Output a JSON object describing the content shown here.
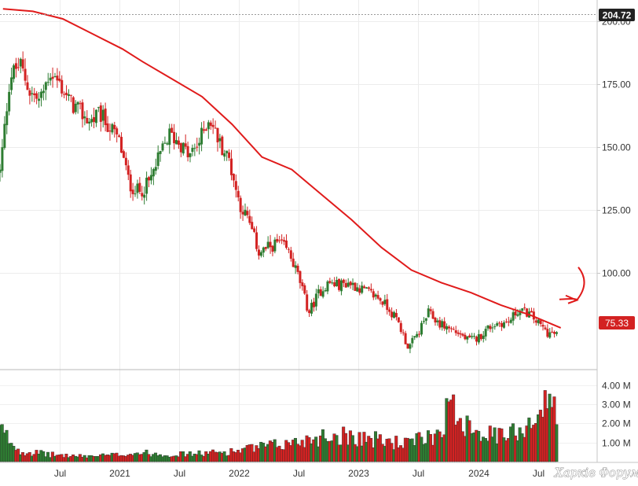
{
  "chart_data": [
    {
      "type": "candlestick",
      "title": "",
      "ylim": [
        62,
        206
      ],
      "yticks": [
        100,
        125,
        150,
        175,
        200
      ],
      "ytick_labels": [
        "100.00",
        "125.00",
        "150.00",
        "175.00",
        "200.00"
      ],
      "x_tick_labels": [
        "Jul",
        "2021",
        "Jul",
        "2022",
        "Jul",
        "2023",
        "Jul",
        "2024",
        "Jul"
      ],
      "x_range": [
        "2020-01",
        "2024-12"
      ],
      "grid": true,
      "markers": {
        "high": {
          "label": "204.72",
          "value": 204.72,
          "color": "#222222"
        },
        "last": {
          "label": "75.33",
          "value": 75.33,
          "color": "#d32222"
        }
      },
      "colors": {
        "up": "#2e7d32",
        "down": "#d32222"
      },
      "price_path": [
        {
          "x": "2020-01",
          "y": 140
        },
        {
          "x": "2020-02",
          "y": 178
        },
        {
          "x": "2020-03",
          "y": 183
        },
        {
          "x": "2020-04",
          "y": 172
        },
        {
          "x": "2020-05",
          "y": 168
        },
        {
          "x": "2020-06",
          "y": 180
        },
        {
          "x": "2020-07",
          "y": 175
        },
        {
          "x": "2020-08",
          "y": 168
        },
        {
          "x": "2020-09",
          "y": 164
        },
        {
          "x": "2020-10",
          "y": 160
        },
        {
          "x": "2020-11",
          "y": 163
        },
        {
          "x": "2020-12",
          "y": 158
        },
        {
          "x": "2021-01",
          "y": 152
        },
        {
          "x": "2021-02",
          "y": 135
        },
        {
          "x": "2021-03",
          "y": 132
        },
        {
          "x": "2021-04",
          "y": 136
        },
        {
          "x": "2021-05",
          "y": 146
        },
        {
          "x": "2021-06",
          "y": 155
        },
        {
          "x": "2021-07",
          "y": 152
        },
        {
          "x": "2021-08",
          "y": 146
        },
        {
          "x": "2021-09",
          "y": 152
        },
        {
          "x": "2021-10",
          "y": 162
        },
        {
          "x": "2021-11",
          "y": 152
        },
        {
          "x": "2021-12",
          "y": 145
        },
        {
          "x": "2022-01",
          "y": 128
        },
        {
          "x": "2022-02",
          "y": 120
        },
        {
          "x": "2022-03",
          "y": 108
        },
        {
          "x": "2022-04",
          "y": 110
        },
        {
          "x": "2022-05",
          "y": 112
        },
        {
          "x": "2022-06",
          "y": 108
        },
        {
          "x": "2022-07",
          "y": 98
        },
        {
          "x": "2022-08",
          "y": 84
        },
        {
          "x": "2022-09",
          "y": 92
        },
        {
          "x": "2022-10",
          "y": 96
        },
        {
          "x": "2022-11",
          "y": 95
        },
        {
          "x": "2022-12",
          "y": 96
        },
        {
          "x": "2023-01",
          "y": 94
        },
        {
          "x": "2023-02",
          "y": 92
        },
        {
          "x": "2023-03",
          "y": 90
        },
        {
          "x": "2023-04",
          "y": 86
        },
        {
          "x": "2023-05",
          "y": 80
        },
        {
          "x": "2023-06",
          "y": 70
        },
        {
          "x": "2023-07",
          "y": 76
        },
        {
          "x": "2023-08",
          "y": 84
        },
        {
          "x": "2023-09",
          "y": 80
        },
        {
          "x": "2023-10",
          "y": 78
        },
        {
          "x": "2023-11",
          "y": 76
        },
        {
          "x": "2023-12",
          "y": 73
        },
        {
          "x": "2024-01",
          "y": 74
        },
        {
          "x": "2024-02",
          "y": 78
        },
        {
          "x": "2024-03",
          "y": 80
        },
        {
          "x": "2024-04",
          "y": 80
        },
        {
          "x": "2024-05",
          "y": 85
        },
        {
          "x": "2024-06",
          "y": 84
        },
        {
          "x": "2024-07",
          "y": 80
        },
        {
          "x": "2024-08",
          "y": 76
        },
        {
          "x": "2024-09",
          "y": 75.33
        }
      ],
      "moving_average": [
        {
          "x": "2020-01",
          "y": 205
        },
        {
          "x": "2020-04",
          "y": 204
        },
        {
          "x": "2020-07",
          "y": 201
        },
        {
          "x": "2020-10",
          "y": 195
        },
        {
          "x": "2021-01",
          "y": 189
        },
        {
          "x": "2021-03",
          "y": 184
        },
        {
          "x": "2021-06",
          "y": 177
        },
        {
          "x": "2021-09",
          "y": 170
        },
        {
          "x": "2021-12",
          "y": 159
        },
        {
          "x": "2022-03",
          "y": 146
        },
        {
          "x": "2022-06",
          "y": 141
        },
        {
          "x": "2022-09",
          "y": 131
        },
        {
          "x": "2022-12",
          "y": 121
        },
        {
          "x": "2023-03",
          "y": 110
        },
        {
          "x": "2023-06",
          "y": 101
        },
        {
          "x": "2023-09",
          "y": 96
        },
        {
          "x": "2023-12",
          "y": 92
        },
        {
          "x": "2024-03",
          "y": 87
        },
        {
          "x": "2024-06",
          "y": 83
        },
        {
          "x": "2024-09",
          "y": 78
        }
      ],
      "moving_average_color": "#e01b1b",
      "annotation": {
        "type": "arrow",
        "color": "#e01b1b",
        "target": {
          "x": "2024-10",
          "y": 89
        }
      }
    },
    {
      "type": "bar",
      "ylim": [
        0,
        4.6
      ],
      "yticks": [
        1,
        2,
        3,
        4
      ],
      "ytick_labels": [
        "1.00 M",
        "2.00 M",
        "3.00 M",
        "4.00 M"
      ],
      "units": "M",
      "volume_path": [
        {
          "x": "2020-01",
          "y": 1.8
        },
        {
          "x": "2020-03",
          "y": 0.6
        },
        {
          "x": "2020-06",
          "y": 0.4
        },
        {
          "x": "2020-09",
          "y": 0.3
        },
        {
          "x": "2020-12",
          "y": 0.35
        },
        {
          "x": "2021-03",
          "y": 0.5
        },
        {
          "x": "2021-06",
          "y": 0.4
        },
        {
          "x": "2021-09",
          "y": 0.45
        },
        {
          "x": "2021-12",
          "y": 0.55
        },
        {
          "x": "2022-03",
          "y": 0.8
        },
        {
          "x": "2022-06",
          "y": 1.0
        },
        {
          "x": "2022-09",
          "y": 1.4
        },
        {
          "x": "2022-12",
          "y": 1.5
        },
        {
          "x": "2023-03",
          "y": 1.2
        },
        {
          "x": "2023-06",
          "y": 1.0
        },
        {
          "x": "2023-09",
          "y": 1.6
        },
        {
          "x": "2023-10",
          "y": 3.0
        },
        {
          "x": "2023-12",
          "y": 2.3
        },
        {
          "x": "2024-02",
          "y": 1.5
        },
        {
          "x": "2024-04",
          "y": 1.4
        },
        {
          "x": "2024-06",
          "y": 2.2
        },
        {
          "x": "2024-08",
          "y": 3.2
        },
        {
          "x": "2024-09",
          "y": 3.4
        }
      ]
    }
  ],
  "watermark": "Харків Форум"
}
